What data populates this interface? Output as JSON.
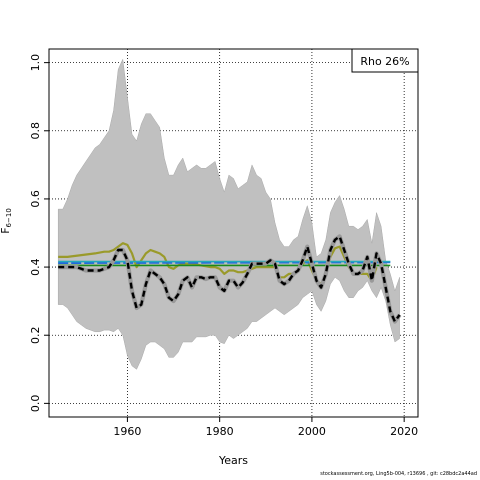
{
  "chart_data": {
    "type": "line",
    "xlabel": "Years",
    "ylabel": "F",
    "ylabel_sub": "6−10",
    "xlim": [
      1943,
      2023
    ],
    "ylim": [
      -0.04,
      1.04
    ],
    "xticks": [
      1960,
      1980,
      2000,
      2020
    ],
    "yticks": [
      0.0,
      0.2,
      0.4,
      0.6,
      0.8,
      1.0
    ],
    "ytick_labels": [
      "0.0",
      "0.2",
      "0.4",
      "0.6",
      "0.8",
      "1.0"
    ],
    "grid": true,
    "annotation": "Rho 26%",
    "band": {
      "x": [
        1945,
        1946,
        1947,
        1948,
        1949,
        1950,
        1951,
        1952,
        1953,
        1954,
        1955,
        1956,
        1957,
        1958,
        1959,
        1960,
        1961,
        1962,
        1963,
        1964,
        1965,
        1966,
        1967,
        1968,
        1969,
        1970,
        1971,
        1972,
        1973,
        1974,
        1975,
        1976,
        1977,
        1978,
        1979,
        1980,
        1981,
        1982,
        1983,
        1984,
        1985,
        1986,
        1987,
        1988,
        1989,
        1990,
        1991,
        1992,
        1993,
        1994,
        1995,
        1996,
        1997,
        1998,
        1999,
        2000,
        2001,
        2002,
        2003,
        2004,
        2005,
        2006,
        2007,
        2008,
        2009,
        2010,
        2011,
        2012,
        2013,
        2014,
        2015,
        2016,
        2017,
        2018,
        2019
      ],
      "upper": [
        0.57,
        0.57,
        0.6,
        0.64,
        0.67,
        0.69,
        0.71,
        0.73,
        0.75,
        0.76,
        0.78,
        0.8,
        0.86,
        0.98,
        1.01,
        0.9,
        0.79,
        0.77,
        0.82,
        0.85,
        0.85,
        0.83,
        0.81,
        0.72,
        0.67,
        0.67,
        0.7,
        0.72,
        0.68,
        0.69,
        0.7,
        0.69,
        0.69,
        0.7,
        0.71,
        0.66,
        0.62,
        0.67,
        0.66,
        0.63,
        0.64,
        0.65,
        0.7,
        0.67,
        0.66,
        0.62,
        0.6,
        0.53,
        0.48,
        0.46,
        0.46,
        0.48,
        0.49,
        0.54,
        0.58,
        0.53,
        0.43,
        0.44,
        0.48,
        0.56,
        0.59,
        0.61,
        0.57,
        0.52,
        0.52,
        0.51,
        0.52,
        0.54,
        0.47,
        0.56,
        0.52,
        0.42,
        0.38,
        0.33,
        0.37
      ],
      "lower": [
        0.29,
        0.29,
        0.28,
        0.26,
        0.24,
        0.23,
        0.22,
        0.215,
        0.21,
        0.21,
        0.215,
        0.215,
        0.21,
        0.22,
        0.2,
        0.14,
        0.11,
        0.1,
        0.13,
        0.17,
        0.18,
        0.18,
        0.17,
        0.16,
        0.135,
        0.135,
        0.15,
        0.18,
        0.18,
        0.18,
        0.195,
        0.195,
        0.195,
        0.2,
        0.2,
        0.18,
        0.175,
        0.2,
        0.19,
        0.2,
        0.21,
        0.22,
        0.24,
        0.24,
        0.25,
        0.26,
        0.27,
        0.28,
        0.27,
        0.26,
        0.27,
        0.28,
        0.29,
        0.31,
        0.32,
        0.33,
        0.29,
        0.27,
        0.3,
        0.35,
        0.37,
        0.36,
        0.33,
        0.31,
        0.31,
        0.33,
        0.34,
        0.36,
        0.33,
        0.31,
        0.34,
        0.3,
        0.23,
        0.18,
        0.19
      ]
    },
    "series": [
      {
        "style": "black-dashed",
        "color": "#000000",
        "x": [
          1945,
          1946,
          1947,
          1948,
          1949,
          1950,
          1951,
          1952,
          1953,
          1954,
          1955,
          1956,
          1957,
          1958,
          1959,
          1960,
          1961,
          1962,
          1963,
          1964,
          1965,
          1966,
          1967,
          1968,
          1969,
          1970,
          1971,
          1972,
          1973,
          1974,
          1975,
          1976,
          1977,
          1978,
          1979,
          1980,
          1981,
          1982,
          1983,
          1984,
          1985,
          1986,
          1987,
          1988,
          1989,
          1990,
          1991,
          1992,
          1993,
          1994,
          1995,
          1996,
          1997,
          1998,
          1999,
          2000,
          2001,
          2002,
          2003,
          2004,
          2005,
          2006,
          2007,
          2008,
          2009,
          2010,
          2011,
          2012,
          2013,
          2014,
          2015,
          2016,
          2017,
          2018,
          2019
        ],
        "values": [
          0.4,
          0.4,
          0.4,
          0.4,
          0.4,
          0.395,
          0.39,
          0.39,
          0.39,
          0.39,
          0.395,
          0.4,
          0.42,
          0.45,
          0.45,
          0.42,
          0.33,
          0.28,
          0.29,
          0.35,
          0.39,
          0.38,
          0.37,
          0.35,
          0.31,
          0.3,
          0.32,
          0.36,
          0.37,
          0.34,
          0.37,
          0.37,
          0.365,
          0.37,
          0.37,
          0.34,
          0.33,
          0.36,
          0.36,
          0.34,
          0.355,
          0.38,
          0.41,
          0.41,
          0.41,
          0.41,
          0.42,
          0.41,
          0.36,
          0.35,
          0.36,
          0.38,
          0.39,
          0.42,
          0.46,
          0.41,
          0.36,
          0.34,
          0.38,
          0.45,
          0.48,
          0.49,
          0.45,
          0.41,
          0.38,
          0.38,
          0.39,
          0.43,
          0.36,
          0.44,
          0.41,
          0.34,
          0.27,
          0.24,
          0.26
        ]
      },
      {
        "style": "olive-solid",
        "color": "#9a9a2a",
        "x": [
          1945,
          1947,
          1950,
          1953,
          1955,
          1956,
          1957,
          1958,
          1959,
          1960,
          1961,
          1962,
          1963,
          1964,
          1965,
          1966,
          1967,
          1968,
          1969,
          1970,
          1971,
          1972,
          1974,
          1976,
          1978,
          1979,
          1980,
          1981,
          1982,
          1983,
          1984,
          1985,
          1986,
          1988,
          1990,
          1992,
          1993,
          1994,
          1995,
          1996,
          1997,
          1998,
          1999,
          2000,
          2001,
          2002,
          2003,
          2004,
          2005,
          2006,
          2007,
          2008,
          2009,
          2010,
          2011,
          2012,
          2013,
          2014
        ],
        "values": [
          0.43,
          0.43,
          0.435,
          0.44,
          0.445,
          0.445,
          0.45,
          0.46,
          0.47,
          0.465,
          0.44,
          0.4,
          0.42,
          0.44,
          0.45,
          0.445,
          0.44,
          0.43,
          0.4,
          0.395,
          0.405,
          0.41,
          0.41,
          0.405,
          0.4,
          0.4,
          0.395,
          0.38,
          0.39,
          0.39,
          0.385,
          0.385,
          0.39,
          0.4,
          0.4,
          0.4,
          0.37,
          0.37,
          0.38,
          0.38,
          0.39,
          0.41,
          0.42,
          0.39,
          0.36,
          0.35,
          0.38,
          0.43,
          0.455,
          0.46,
          0.43,
          0.4,
          0.38,
          0.38,
          0.38,
          0.38,
          0.36,
          0.4
        ]
      },
      {
        "style": "green-solid",
        "color": "#1b8a1b",
        "x": [
          1945,
          2017
        ],
        "values": [
          0.405,
          0.405
        ]
      },
      {
        "style": "blue-solid",
        "color": "#2266dd",
        "x": [
          1945,
          2017
        ],
        "values": [
          0.412,
          0.414
        ]
      },
      {
        "style": "cyan-solid",
        "color": "#22aabb",
        "x": [
          1945,
          2017
        ],
        "values": [
          0.416,
          0.416
        ]
      }
    ]
  },
  "footer_text": "stockassessment.org, Ling5b-004, r13696 ,  git: c28bdc2a44ad"
}
